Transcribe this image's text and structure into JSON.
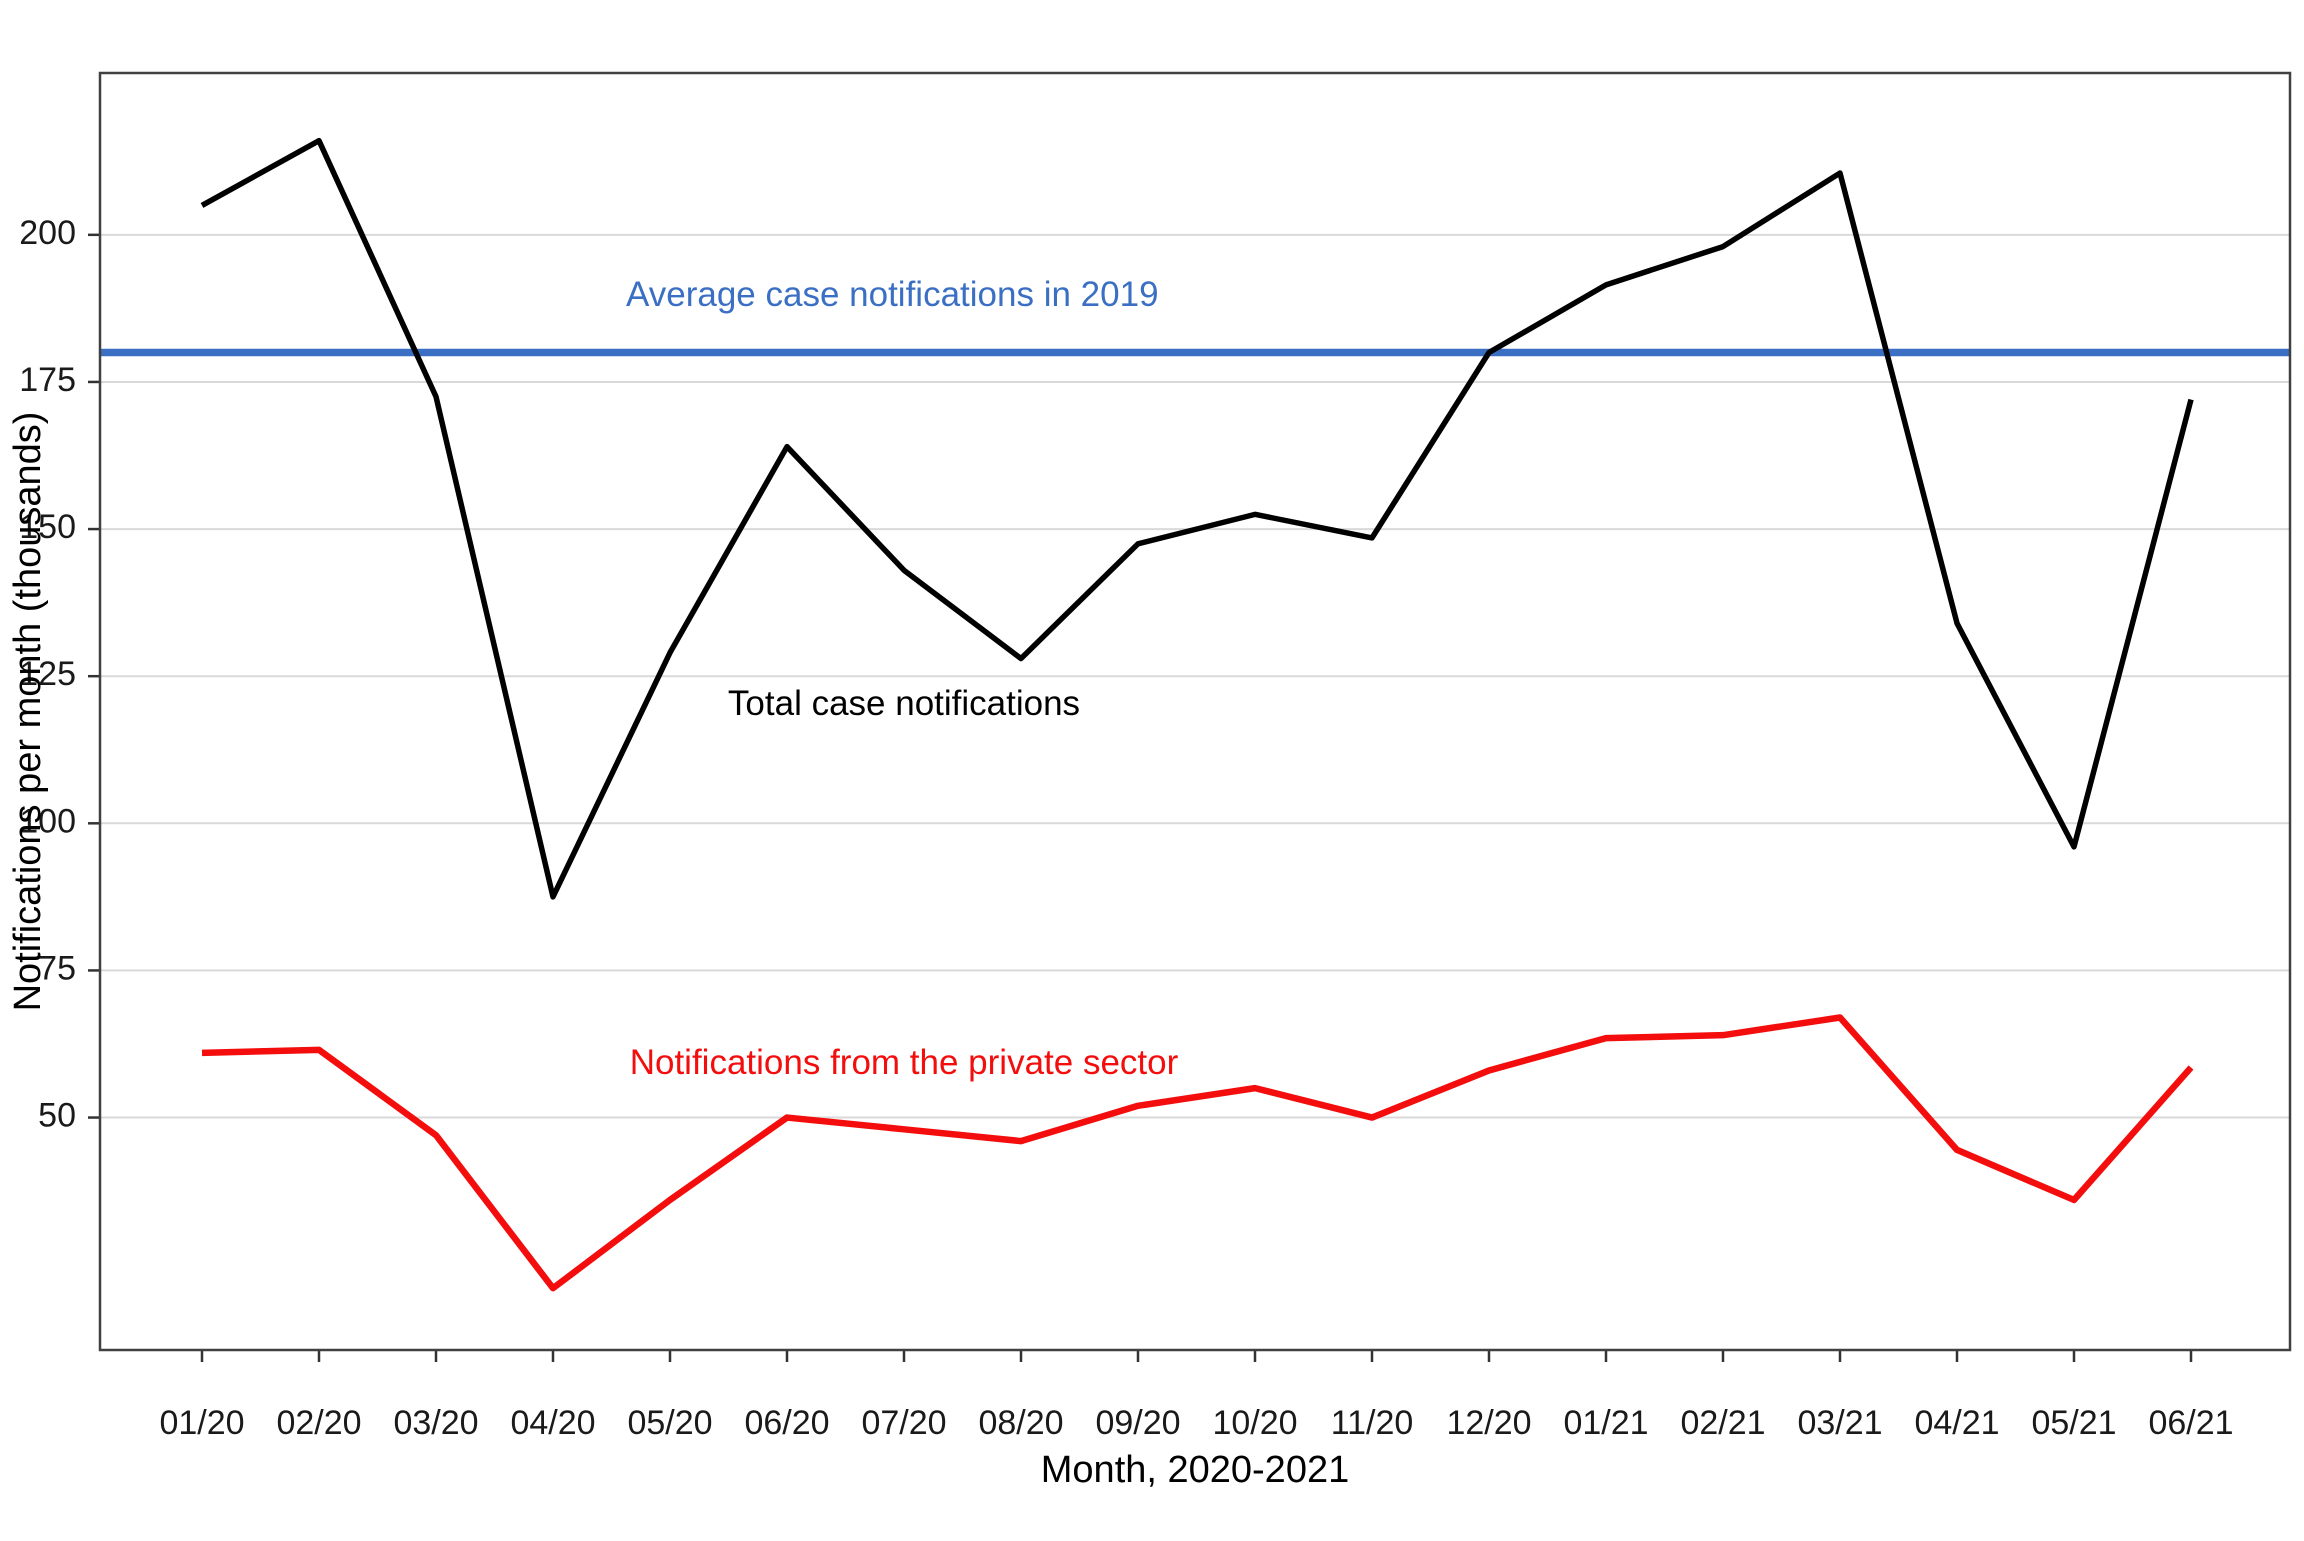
{
  "chart_data": {
    "type": "line",
    "title": "",
    "xlabel": "Month, 2020-2021",
    "ylabel": "Notifications per month (thousands)",
    "categories": [
      "01/20",
      "02/20",
      "03/20",
      "04/20",
      "05/20",
      "06/20",
      "07/20",
      "08/20",
      "09/20",
      "10/20",
      "11/20",
      "12/20",
      "01/21",
      "02/21",
      "03/21",
      "04/21",
      "05/21",
      "06/21"
    ],
    "yticks": [
      50,
      75,
      100,
      125,
      150,
      175,
      200
    ],
    "ylim": [
      10.5,
      227.5
    ],
    "grid": "horizontal",
    "legend_position": "none (direct labels on chart)",
    "background": "#ffffff",
    "grid_color": "#d9d9d9",
    "border_color": "#404040",
    "axis_text_color": "#1a1a1a",
    "series": [
      {
        "name": "Total case notifications",
        "color": "#000000",
        "stroke_width": 5.5,
        "values": [
          205,
          216,
          172.5,
          87.5,
          129,
          164,
          143,
          128,
          147.5,
          152.5,
          148.5,
          180,
          191.5,
          198,
          210.5,
          134,
          96,
          172
        ]
      },
      {
        "name": "Notifications from the private sector",
        "color": "#f30d0d",
        "stroke_width": 6.5,
        "values": [
          61,
          61.5,
          47,
          21,
          36,
          50,
          48,
          46,
          52,
          55,
          50,
          58,
          63.5,
          64,
          67,
          44.5,
          36,
          58.5
        ]
      }
    ],
    "reference_line": {
      "label": "Average case notifications in 2019",
      "value": 180,
      "color": "#3a6fc4",
      "stroke_width": 7.5
    },
    "annotations": [
      {
        "text": "Average case notifications in 2019",
        "color": "#3a6fc4",
        "x": 5.9,
        "y": 189.5
      },
      {
        "text": "Total case notifications",
        "color": "#000000",
        "x": 6.0,
        "y": 120
      },
      {
        "text": "Notifications from the private sector",
        "color": "#f30d0d",
        "x": 6.0,
        "y": 59
      }
    ]
  }
}
